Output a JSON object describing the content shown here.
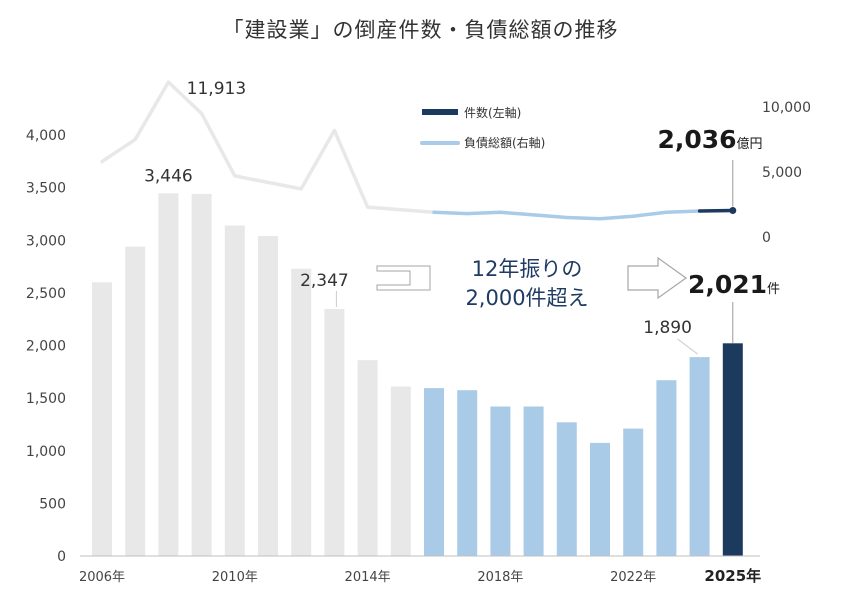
{
  "chart_data": {
    "type": "bar",
    "title": "「建設業」の倒産件数・負債総額の推移",
    "categories": [
      "2006",
      "2007",
      "2008",
      "2009",
      "2010",
      "2011",
      "2012",
      "2013",
      "2014",
      "2015",
      "2016",
      "2017",
      "2018",
      "2019",
      "2020",
      "2021",
      "2022",
      "2023",
      "2024",
      "2025"
    ],
    "series": [
      {
        "name": "件数(左軸)",
        "axis": "left",
        "values": [
          2600,
          2940,
          3446,
          3440,
          3140,
          3040,
          2730,
          2347,
          1860,
          1610,
          1595,
          1575,
          1420,
          1420,
          1270,
          1075,
          1210,
          1670,
          1890,
          2021
        ]
      },
      {
        "name": "負債総額(右軸)",
        "axis": "right",
        "values": [
          5800,
          7500,
          11913,
          9500,
          4700,
          4200,
          3700,
          8200,
          2300,
          2100,
          1900,
          1800,
          1900,
          1700,
          1500,
          1400,
          1600,
          1900,
          2000,
          2036
        ]
      }
    ],
    "bar_colors": {
      "past": "#e8e8e8",
      "recent": "#a9cbe8",
      "current": "#1c3a5e"
    },
    "line_colors": {
      "past": "#e8e8e8",
      "recent": "#a9cbe8",
      "current": "#1c3a5e"
    },
    "y_left": {
      "lim": [
        0,
        4000
      ],
      "ticks": [
        "0",
        "500",
        "1,000",
        "1,500",
        "2,000",
        "2,500",
        "3,000",
        "3,500",
        "4,000"
      ]
    },
    "y_right": {
      "lim": [
        0,
        10000
      ],
      "ticks": [
        "0",
        "5,000",
        "10,000"
      ]
    },
    "x_ticks": [
      "2006年",
      "2010年",
      "2014年",
      "2018年",
      "2022年",
      "2025年"
    ],
    "data_labels": {
      "bar_2008": "3,446",
      "bar_2013": "2,347",
      "bar_2024": "1,890",
      "bar_2025_value": "2,021",
      "bar_2025_unit": "件",
      "line_2008": "11,913",
      "line_2025_value": "2,036",
      "line_2025_unit": "億円"
    },
    "annotation": {
      "line1": "12年振りの",
      "line2": "2,000件超え"
    },
    "legend": {
      "position": "top-right"
    },
    "grid": false
  }
}
